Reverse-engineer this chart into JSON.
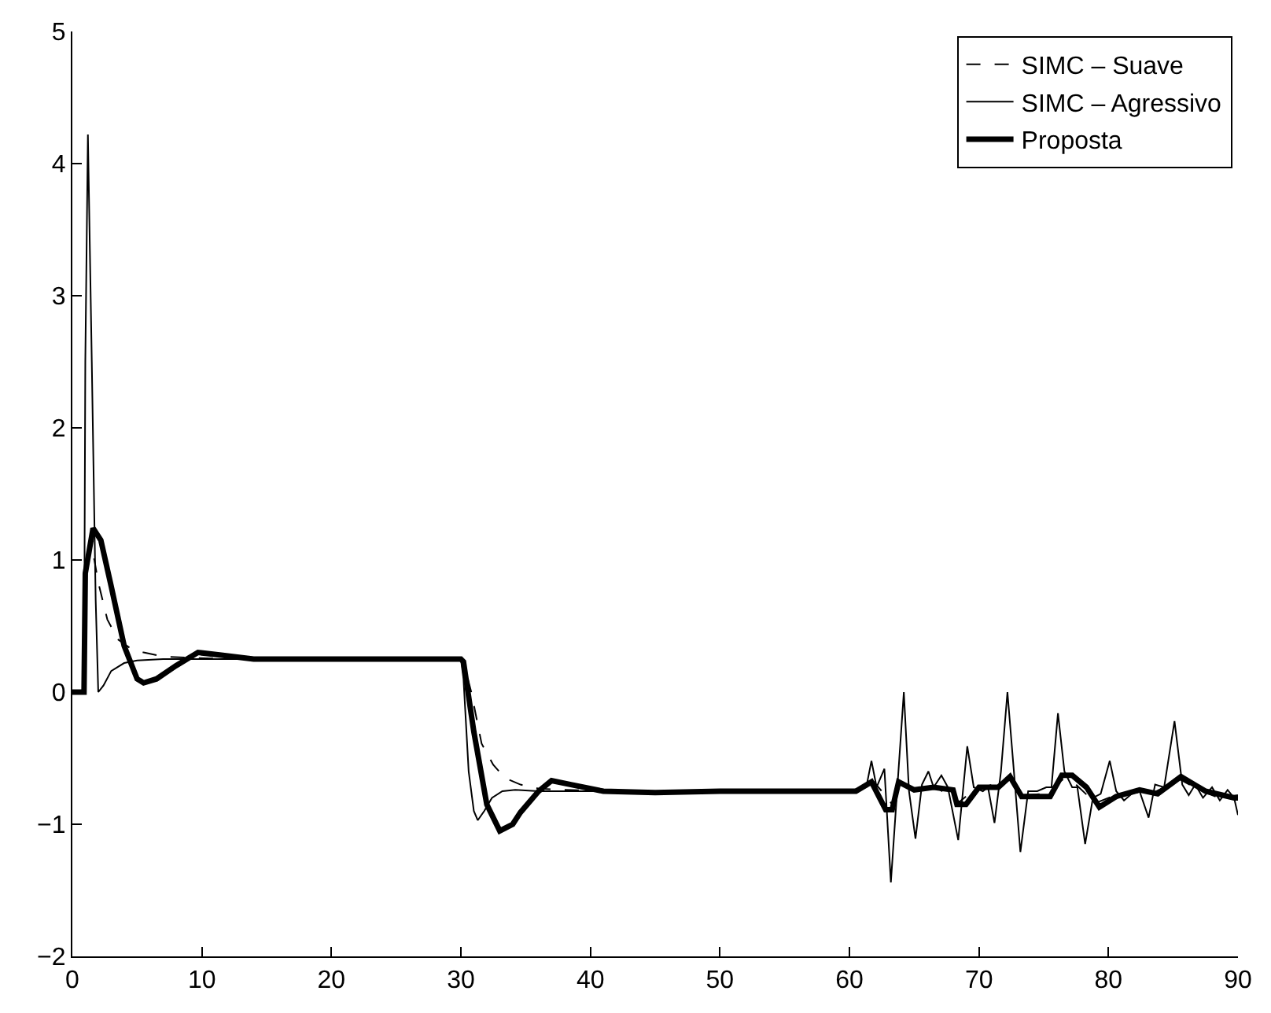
{
  "chart_data": {
    "type": "line",
    "xlim": [
      0,
      90
    ],
    "ylim": [
      -2,
      5
    ],
    "xticks": [
      0,
      10,
      20,
      30,
      40,
      50,
      60,
      70,
      80,
      90
    ],
    "yticks": [
      -2,
      -1,
      0,
      1,
      2,
      3,
      4,
      5
    ],
    "legend": "top right",
    "marker": "none",
    "series": [
      {
        "name": "SIMC – Suave",
        "color": "#000000",
        "line_style": "dashed",
        "x": [
          0,
          0.9,
          1.0,
          1.3,
          1.7,
          2.0,
          2.7,
          3.5,
          4.5,
          5.5,
          7,
          9,
          12,
          20,
          30,
          30.2,
          30.8,
          31.6,
          32.5,
          33.4,
          34.6,
          36,
          38,
          42,
          50,
          60,
          61,
          61.7,
          62.5,
          63.3,
          64,
          65,
          66,
          67,
          68.5,
          69.5,
          71,
          72.4,
          73.4,
          75,
          76.5,
          77.5,
          79,
          80.5,
          82,
          83.5,
          85.5,
          87,
          88.5,
          90
        ],
        "values": [
          0,
          0,
          0.8,
          1.1,
          1.0,
          0.83,
          0.55,
          0.4,
          0.33,
          0.3,
          0.27,
          0.26,
          0.25,
          0.25,
          0.25,
          0.23,
          0.0,
          -0.39,
          -0.55,
          -0.65,
          -0.7,
          -0.73,
          -0.74,
          -0.75,
          -0.75,
          -0.75,
          -0.72,
          -0.66,
          -0.75,
          -0.85,
          -0.7,
          -0.75,
          -0.7,
          -0.74,
          -0.83,
          -0.75,
          -0.7,
          -0.66,
          -0.78,
          -0.77,
          -0.66,
          -0.7,
          -0.84,
          -0.78,
          -0.76,
          -0.76,
          -0.66,
          -0.74,
          -0.8,
          -0.78
        ]
      },
      {
        "name": "SIMC – Agressivo",
        "color": "#000000",
        "line_style": "solid",
        "x": [
          0,
          0.9,
          1.0,
          1.2,
          1.5,
          1.8,
          2.0,
          2.4,
          3.0,
          4.0,
          5.0,
          7,
          10,
          20,
          30,
          30.2,
          30.6,
          31.0,
          31.3,
          31.8,
          32.4,
          33.2,
          34.2,
          36,
          40,
          50,
          60,
          61.3,
          61.7,
          62.1,
          62.7,
          63.2,
          64.2,
          64.6,
          65.1,
          65.6,
          66.1,
          66.5,
          67.1,
          67.6,
          68.4,
          69.1,
          69.6,
          70.3,
          70.7,
          71.2,
          71.7,
          72.2,
          72.7,
          73.2,
          73.8,
          74.5,
          75.2,
          75.6,
          76.1,
          76.6,
          77.2,
          77.6,
          78.2,
          78.8,
          79.4,
          80.1,
          80.6,
          81.2,
          81.8,
          82.4,
          83.1,
          83.6,
          84.3,
          85.1,
          85.7,
          86.2,
          86.7,
          87.3,
          88,
          88.6,
          89.2,
          89.7,
          90
        ],
        "values": [
          0,
          0,
          2.5,
          4.22,
          2.5,
          0.7,
          0.0,
          0.05,
          0.16,
          0.22,
          0.24,
          0.25,
          0.25,
          0.25,
          0.25,
          0.1,
          -0.6,
          -0.9,
          -0.97,
          -0.9,
          -0.8,
          -0.75,
          -0.74,
          -0.75,
          -0.75,
          -0.75,
          -0.75,
          -0.72,
          -0.52,
          -0.72,
          -0.58,
          -1.44,
          0.0,
          -0.75,
          -1.11,
          -0.7,
          -0.6,
          -0.72,
          -0.63,
          -0.72,
          -1.12,
          -0.41,
          -0.72,
          -0.75,
          -0.72,
          -0.99,
          -0.6,
          0.0,
          -0.6,
          -1.21,
          -0.75,
          -0.75,
          -0.72,
          -0.72,
          -0.16,
          -0.6,
          -0.72,
          -0.72,
          -1.15,
          -0.8,
          -0.77,
          -0.52,
          -0.75,
          -0.82,
          -0.77,
          -0.75,
          -0.95,
          -0.7,
          -0.72,
          -0.22,
          -0.7,
          -0.78,
          -0.7,
          -0.8,
          -0.72,
          -0.82,
          -0.74,
          -0.8,
          -0.93
        ]
      },
      {
        "name": "Proposta",
        "color": "#000000",
        "line_style": "solid",
        "x": [
          0,
          0.9,
          1.0,
          1.6,
          2.2,
          3.0,
          4.0,
          5.0,
          5.5,
          6.5,
          8,
          9.7,
          11.5,
          14,
          20,
          30,
          30.2,
          31,
          32,
          33,
          34,
          34.6,
          36,
          37,
          38.5,
          41,
          45,
          50,
          60,
          60.5,
          61.7,
          62.8,
          63.3,
          63.8,
          65,
          66.5,
          68,
          68.3,
          69,
          70,
          71.5,
          72.4,
          73.3,
          75.5,
          76.4,
          77.2,
          78.3,
          79.3,
          80.6,
          82.4,
          83.8,
          85.6,
          87.5,
          89.7,
          90
        ],
        "values": [
          0,
          0,
          0.9,
          1.24,
          1.15,
          0.8,
          0.35,
          0.1,
          0.07,
          0.1,
          0.2,
          0.3,
          0.28,
          0.25,
          0.25,
          0.25,
          0.23,
          -0.3,
          -0.85,
          -1.05,
          -1.0,
          -0.91,
          -0.75,
          -0.67,
          -0.7,
          -0.75,
          -0.76,
          -0.75,
          -0.75,
          -0.75,
          -0.68,
          -0.89,
          -0.89,
          -0.68,
          -0.74,
          -0.72,
          -0.74,
          -0.85,
          -0.85,
          -0.72,
          -0.72,
          -0.64,
          -0.79,
          -0.79,
          -0.63,
          -0.63,
          -0.72,
          -0.87,
          -0.79,
          -0.74,
          -0.77,
          -0.64,
          -0.75,
          -0.8,
          -0.8
        ]
      }
    ]
  }
}
